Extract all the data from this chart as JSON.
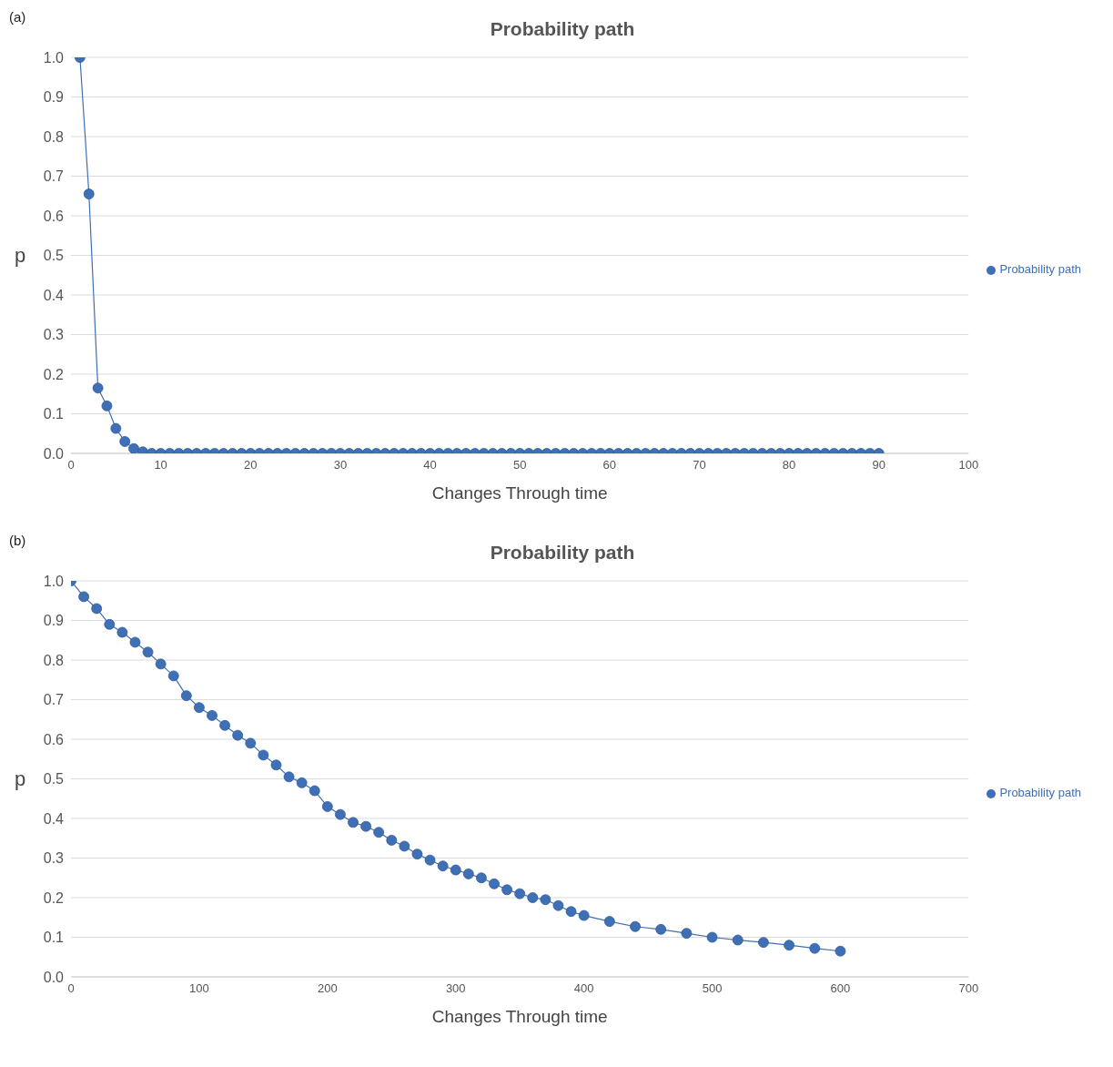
{
  "chart_data": [
    {
      "type": "line",
      "title": "Probability path",
      "xlabel": "Changes Through time",
      "ylabel": "p",
      "annotations": [
        "(a)"
      ],
      "x": [
        1,
        2,
        3,
        4,
        5,
        6,
        7,
        8,
        9,
        10,
        11,
        12,
        13,
        14,
        15,
        16,
        17,
        18,
        19,
        20,
        21,
        22,
        23,
        24,
        25,
        26,
        27,
        28,
        29,
        30,
        31,
        32,
        33,
        34,
        35,
        36,
        37,
        38,
        39,
        40,
        41,
        42,
        43,
        44,
        45,
        46,
        47,
        48,
        49,
        50,
        51,
        52,
        53,
        54,
        55,
        56,
        57,
        58,
        59,
        60,
        61,
        62,
        63,
        64,
        65,
        66,
        67,
        68,
        69,
        70,
        71,
        72,
        73,
        74,
        75,
        76,
        77,
        78,
        79,
        80,
        81,
        82,
        83,
        84,
        85,
        86,
        87,
        88,
        89,
        90
      ],
      "series": [
        {
          "name": "Probability path",
          "color": "#3f6fb5",
          "values": [
            1.0,
            0.655,
            0.165,
            0.12,
            0.063,
            0.03,
            0.012,
            0.004,
            0,
            0,
            0,
            0,
            0,
            0,
            0,
            0,
            0,
            0,
            0,
            0,
            0,
            0,
            0,
            0,
            0,
            0,
            0,
            0,
            0,
            0,
            0,
            0,
            0,
            0,
            0,
            0,
            0,
            0,
            0,
            0,
            0,
            0,
            0,
            0,
            0,
            0,
            0,
            0,
            0,
            0,
            0,
            0,
            0,
            0,
            0,
            0,
            0,
            0,
            0,
            0,
            0,
            0,
            0,
            0,
            0,
            0,
            0,
            0,
            0,
            0,
            0,
            0,
            0,
            0,
            0,
            0,
            0,
            0,
            0,
            0,
            0,
            0,
            0,
            0,
            0,
            0,
            0,
            0,
            0,
            0
          ]
        }
      ],
      "xlim": [
        0,
        100
      ],
      "xticks": [
        0,
        10,
        20,
        30,
        40,
        50,
        60,
        70,
        80,
        90,
        100
      ],
      "ylim": [
        0,
        1
      ],
      "yticks": [
        {
          "value": 0,
          "label": "0.0"
        },
        {
          "value": 0.1,
          "label": "0.1"
        },
        {
          "value": 0.2,
          "label": "0.2"
        },
        {
          "value": 0.3,
          "label": "0.3"
        },
        {
          "value": 0.4,
          "label": "0.4"
        },
        {
          "value": 0.5,
          "label": "0.5"
        },
        {
          "value": 0.6,
          "label": "0.6"
        },
        {
          "value": 0.7,
          "label": "0.7"
        },
        {
          "value": 0.8,
          "label": "0.8"
        },
        {
          "value": 0.9,
          "label": "0.9"
        },
        {
          "value": 1,
          "label": "1.0"
        }
      ],
      "grid": "y",
      "legend": "right",
      "marker": "circle"
    },
    {
      "type": "line",
      "title": "Probability path",
      "xlabel": "Changes Through time",
      "ylabel": "p",
      "annotations": [
        "(b)"
      ],
      "x": [
        0,
        10,
        20,
        30,
        40,
        50,
        60,
        70,
        80,
        90,
        100,
        110,
        120,
        130,
        140,
        150,
        160,
        170,
        180,
        190,
        200,
        210,
        220,
        230,
        240,
        250,
        260,
        270,
        280,
        290,
        300,
        310,
        320,
        330,
        340,
        350,
        360,
        370,
        380,
        390,
        400,
        420,
        440,
        460,
        480,
        500,
        520,
        540,
        560,
        580,
        600
      ],
      "series": [
        {
          "name": "Probability path",
          "color": "#3f6fb5",
          "values": [
            1.0,
            0.96,
            0.93,
            0.89,
            0.87,
            0.845,
            0.82,
            0.79,
            0.76,
            0.71,
            0.68,
            0.66,
            0.635,
            0.61,
            0.59,
            0.56,
            0.535,
            0.505,
            0.49,
            0.47,
            0.43,
            0.41,
            0.39,
            0.38,
            0.365,
            0.345,
            0.33,
            0.31,
            0.295,
            0.28,
            0.27,
            0.26,
            0.25,
            0.235,
            0.22,
            0.21,
            0.2,
            0.195,
            0.18,
            0.165,
            0.155,
            0.14,
            0.127,
            0.12,
            0.11,
            0.1,
            0.093,
            0.087,
            0.08,
            0.072,
            0.065
          ]
        }
      ],
      "xlim": [
        0,
        700
      ],
      "xticks": [
        0,
        100,
        200,
        300,
        400,
        500,
        600,
        700
      ],
      "ylim": [
        0,
        1
      ],
      "yticks": [
        {
          "value": 0,
          "label": "0.0"
        },
        {
          "value": 0.1,
          "label": "0.1"
        },
        {
          "value": 0.2,
          "label": "0.2"
        },
        {
          "value": 0.3,
          "label": "0.3"
        },
        {
          "value": 0.4,
          "label": "0.4"
        },
        {
          "value": 0.5,
          "label": "0.5"
        },
        {
          "value": 0.6,
          "label": "0.6"
        },
        {
          "value": 0.7,
          "label": "0.7"
        },
        {
          "value": 0.8,
          "label": "0.8"
        },
        {
          "value": 0.9,
          "label": "0.9"
        },
        {
          "value": 1,
          "label": "1.0"
        }
      ],
      "grid": "y",
      "legend": "right",
      "marker": "circle"
    }
  ]
}
